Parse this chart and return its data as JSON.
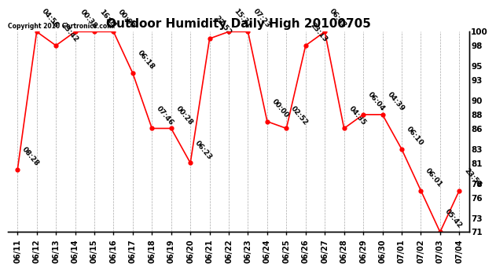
{
  "title": "Outdoor Humidity Daily High 20100705",
  "copyright_text": "Copyright 2010 Cartronics.com",
  "dates": [
    "06/11",
    "06/12",
    "06/13",
    "06/14",
    "06/15",
    "06/16",
    "06/17",
    "06/18",
    "06/19",
    "06/20",
    "06/21",
    "06/22",
    "06/23",
    "06/24",
    "06/25",
    "06/26",
    "06/27",
    "06/28",
    "06/29",
    "06/30",
    "07/01",
    "07/02",
    "07/03",
    "07/04"
  ],
  "values": [
    80,
    100,
    98,
    100,
    100,
    100,
    94,
    86,
    86,
    81,
    99,
    100,
    100,
    87,
    86,
    98,
    100,
    86,
    88,
    88,
    83,
    77,
    71,
    77
  ],
  "time_labels": [
    "08:28",
    "04:56",
    "23:42",
    "00:38",
    "16:01",
    "00:00",
    "06:18",
    "07:46",
    "00:28",
    "06:23",
    "22:52",
    "15:31",
    "07:23",
    "00:00",
    "02:52",
    "23:13",
    "06:43",
    "04:35",
    "06:04",
    "04:39",
    "06:10",
    "06:01",
    "05:42",
    "23:54"
  ],
  "line_color": "#ff0000",
  "marker_color": "#ff0000",
  "bg_color": "#ffffff",
  "grid_color": "#aaaaaa",
  "ylim_min": 71,
  "ylim_max": 100,
  "yticks": [
    71,
    73,
    76,
    78,
    81,
    83,
    86,
    88,
    90,
    93,
    95,
    98,
    100
  ],
  "title_fontsize": 11,
  "tick_fontsize": 7,
  "annotation_fontsize": 6.5
}
